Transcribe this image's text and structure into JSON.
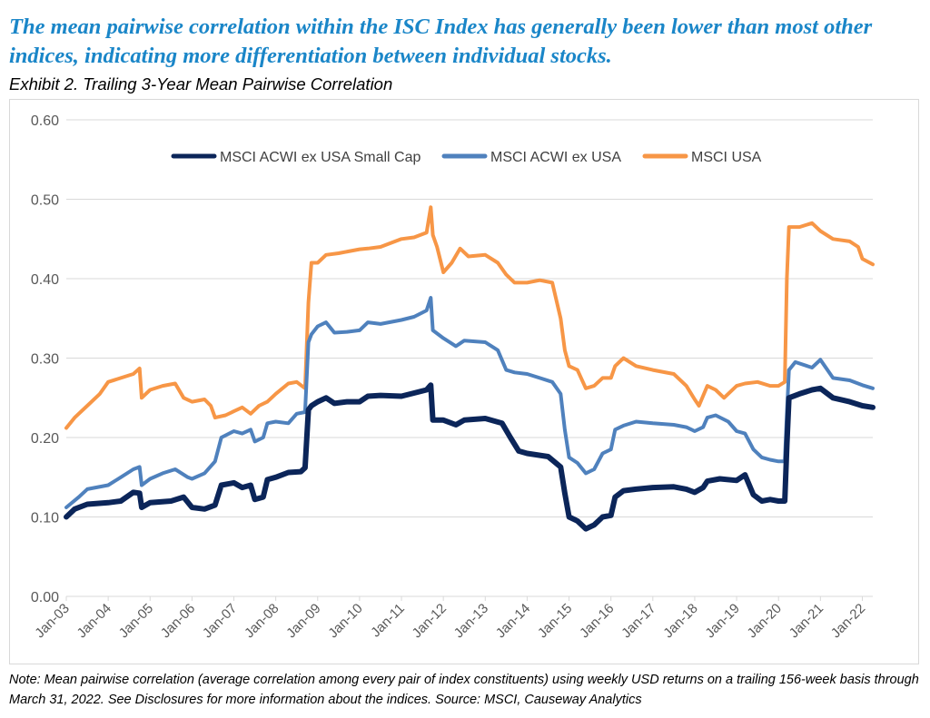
{
  "headline": "The mean pairwise correlation within the ISC Index has generally been lower than most other indices, indicating more differentiation between individual stocks.",
  "exhibit_title": "Exhibit 2. Trailing 3-Year Mean Pairwise Correlation",
  "note": "Note: Mean pairwise correlation (average correlation among every pair of index constituents) using weekly USD returns on a trailing 156-week basis through March 31, 2022.   See Disclosures for more information about the indices.   Source: MSCI, Causeway Analytics",
  "colors": {
    "small_cap": "#0b2559",
    "acwi_ex_usa": "#4f81bd",
    "usa": "#f79646",
    "grid": "#d9d9d9",
    "axis_text": "#595959"
  },
  "chart_data": {
    "type": "line",
    "title": "Exhibit 2. Trailing 3-Year Mean Pairwise Correlation",
    "xlabel": "",
    "ylabel": "",
    "ylim": [
      0,
      0.6
    ],
    "xlim": [
      2003.0,
      2022.25
    ],
    "grid": true,
    "legend_position": "top-center",
    "y_ticks": [
      "0.00",
      "0.10",
      "0.20",
      "0.30",
      "0.40",
      "0.50",
      "0.60"
    ],
    "x_ticks": [
      "Jan-03",
      "Jan-04",
      "Jan-05",
      "Jan-06",
      "Jan-07",
      "Jan-08",
      "Jan-09",
      "Jan-10",
      "Jan-11",
      "Jan-12",
      "Jan-13",
      "Jan-14",
      "Jan-15",
      "Jan-16",
      "Jan-17",
      "Jan-18",
      "Jan-19",
      "Jan-20",
      "Jan-21",
      "Jan-22"
    ],
    "series": [
      {
        "name": "MSCI ACWI ex USA Small Cap",
        "color": "#0b2559",
        "points": [
          [
            2003.0,
            0.1
          ],
          [
            2003.2,
            0.11
          ],
          [
            2003.5,
            0.116
          ],
          [
            2004.0,
            0.118
          ],
          [
            2004.3,
            0.12
          ],
          [
            2004.6,
            0.131
          ],
          [
            2004.75,
            0.13
          ],
          [
            2004.8,
            0.112
          ],
          [
            2005.0,
            0.118
          ],
          [
            2005.5,
            0.12
          ],
          [
            2005.8,
            0.125
          ],
          [
            2006.0,
            0.112
          ],
          [
            2006.3,
            0.11
          ],
          [
            2006.55,
            0.115
          ],
          [
            2006.7,
            0.14
          ],
          [
            2007.0,
            0.143
          ],
          [
            2007.2,
            0.137
          ],
          [
            2007.4,
            0.14
          ],
          [
            2007.5,
            0.122
          ],
          [
            2007.7,
            0.125
          ],
          [
            2007.8,
            0.147
          ],
          [
            2008.0,
            0.15
          ],
          [
            2008.3,
            0.156
          ],
          [
            2008.6,
            0.157
          ],
          [
            2008.7,
            0.162
          ],
          [
            2008.78,
            0.235
          ],
          [
            2008.85,
            0.24
          ],
          [
            2009.0,
            0.245
          ],
          [
            2009.2,
            0.25
          ],
          [
            2009.4,
            0.243
          ],
          [
            2009.7,
            0.245
          ],
          [
            2010.0,
            0.245
          ],
          [
            2010.2,
            0.252
          ],
          [
            2010.5,
            0.253
          ],
          [
            2011.0,
            0.252
          ],
          [
            2011.3,
            0.256
          ],
          [
            2011.6,
            0.26
          ],
          [
            2011.7,
            0.266
          ],
          [
            2011.75,
            0.222
          ],
          [
            2012.0,
            0.222
          ],
          [
            2012.3,
            0.216
          ],
          [
            2012.5,
            0.222
          ],
          [
            2013.0,
            0.224
          ],
          [
            2013.4,
            0.218
          ],
          [
            2013.6,
            0.2
          ],
          [
            2013.8,
            0.183
          ],
          [
            2014.0,
            0.18
          ],
          [
            2014.5,
            0.176
          ],
          [
            2014.8,
            0.163
          ],
          [
            2014.9,
            0.13
          ],
          [
            2015.0,
            0.1
          ],
          [
            2015.2,
            0.095
          ],
          [
            2015.4,
            0.085
          ],
          [
            2015.6,
            0.09
          ],
          [
            2015.8,
            0.1
          ],
          [
            2016.0,
            0.102
          ],
          [
            2016.1,
            0.125
          ],
          [
            2016.3,
            0.133
          ],
          [
            2016.6,
            0.135
          ],
          [
            2017.0,
            0.137
          ],
          [
            2017.5,
            0.138
          ],
          [
            2017.8,
            0.135
          ],
          [
            2018.0,
            0.131
          ],
          [
            2018.2,
            0.137
          ],
          [
            2018.3,
            0.145
          ],
          [
            2018.6,
            0.148
          ],
          [
            2019.0,
            0.146
          ],
          [
            2019.2,
            0.153
          ],
          [
            2019.4,
            0.128
          ],
          [
            2019.6,
            0.12
          ],
          [
            2019.8,
            0.122
          ],
          [
            2020.0,
            0.12
          ],
          [
            2020.15,
            0.12
          ],
          [
            2020.2,
            0.19
          ],
          [
            2020.25,
            0.25
          ],
          [
            2020.5,
            0.255
          ],
          [
            2020.8,
            0.26
          ],
          [
            2021.0,
            0.262
          ],
          [
            2021.3,
            0.25
          ],
          [
            2021.7,
            0.245
          ],
          [
            2022.0,
            0.24
          ],
          [
            2022.25,
            0.238
          ]
        ]
      },
      {
        "name": "MSCI ACWI ex USA",
        "color": "#4f81bd",
        "points": [
          [
            2003.0,
            0.112
          ],
          [
            2003.3,
            0.125
          ],
          [
            2003.5,
            0.135
          ],
          [
            2004.0,
            0.14
          ],
          [
            2004.3,
            0.15
          ],
          [
            2004.6,
            0.16
          ],
          [
            2004.75,
            0.163
          ],
          [
            2004.8,
            0.14
          ],
          [
            2005.0,
            0.148
          ],
          [
            2005.3,
            0.155
          ],
          [
            2005.6,
            0.16
          ],
          [
            2005.9,
            0.15
          ],
          [
            2006.0,
            0.148
          ],
          [
            2006.3,
            0.155
          ],
          [
            2006.55,
            0.17
          ],
          [
            2006.7,
            0.2
          ],
          [
            2007.0,
            0.208
          ],
          [
            2007.2,
            0.205
          ],
          [
            2007.4,
            0.21
          ],
          [
            2007.5,
            0.195
          ],
          [
            2007.7,
            0.2
          ],
          [
            2007.8,
            0.218
          ],
          [
            2008.0,
            0.22
          ],
          [
            2008.3,
            0.218
          ],
          [
            2008.5,
            0.23
          ],
          [
            2008.7,
            0.232
          ],
          [
            2008.78,
            0.32
          ],
          [
            2008.85,
            0.33
          ],
          [
            2009.0,
            0.34
          ],
          [
            2009.2,
            0.345
          ],
          [
            2009.4,
            0.332
          ],
          [
            2009.7,
            0.333
          ],
          [
            2010.0,
            0.335
          ],
          [
            2010.2,
            0.345
          ],
          [
            2010.5,
            0.343
          ],
          [
            2011.0,
            0.348
          ],
          [
            2011.3,
            0.352
          ],
          [
            2011.6,
            0.36
          ],
          [
            2011.7,
            0.376
          ],
          [
            2011.75,
            0.335
          ],
          [
            2012.0,
            0.325
          ],
          [
            2012.3,
            0.315
          ],
          [
            2012.5,
            0.322
          ],
          [
            2013.0,
            0.32
          ],
          [
            2013.3,
            0.31
          ],
          [
            2013.5,
            0.285
          ],
          [
            2013.7,
            0.282
          ],
          [
            2014.0,
            0.28
          ],
          [
            2014.3,
            0.275
          ],
          [
            2014.6,
            0.27
          ],
          [
            2014.8,
            0.255
          ],
          [
            2014.9,
            0.21
          ],
          [
            2015.0,
            0.175
          ],
          [
            2015.2,
            0.168
          ],
          [
            2015.4,
            0.155
          ],
          [
            2015.6,
            0.16
          ],
          [
            2015.8,
            0.18
          ],
          [
            2016.0,
            0.185
          ],
          [
            2016.1,
            0.21
          ],
          [
            2016.3,
            0.215
          ],
          [
            2016.6,
            0.22
          ],
          [
            2017.0,
            0.218
          ],
          [
            2017.5,
            0.216
          ],
          [
            2017.8,
            0.213
          ],
          [
            2018.0,
            0.208
          ],
          [
            2018.2,
            0.213
          ],
          [
            2018.3,
            0.225
          ],
          [
            2018.5,
            0.228
          ],
          [
            2018.8,
            0.22
          ],
          [
            2019.0,
            0.208
          ],
          [
            2019.2,
            0.205
          ],
          [
            2019.4,
            0.185
          ],
          [
            2019.6,
            0.175
          ],
          [
            2019.8,
            0.172
          ],
          [
            2020.0,
            0.17
          ],
          [
            2020.15,
            0.17
          ],
          [
            2020.2,
            0.23
          ],
          [
            2020.25,
            0.285
          ],
          [
            2020.4,
            0.295
          ],
          [
            2020.8,
            0.288
          ],
          [
            2021.0,
            0.298
          ],
          [
            2021.3,
            0.275
          ],
          [
            2021.7,
            0.272
          ],
          [
            2022.0,
            0.266
          ],
          [
            2022.25,
            0.262
          ]
        ]
      },
      {
        "name": "MSCI USA",
        "color": "#f79646",
        "points": [
          [
            2003.0,
            0.212
          ],
          [
            2003.2,
            0.225
          ],
          [
            2003.5,
            0.24
          ],
          [
            2003.8,
            0.255
          ],
          [
            2004.0,
            0.27
          ],
          [
            2004.3,
            0.275
          ],
          [
            2004.6,
            0.28
          ],
          [
            2004.75,
            0.287
          ],
          [
            2004.8,
            0.25
          ],
          [
            2005.0,
            0.26
          ],
          [
            2005.3,
            0.265
          ],
          [
            2005.6,
            0.268
          ],
          [
            2005.8,
            0.25
          ],
          [
            2006.0,
            0.245
          ],
          [
            2006.3,
            0.248
          ],
          [
            2006.45,
            0.24
          ],
          [
            2006.55,
            0.225
          ],
          [
            2006.8,
            0.228
          ],
          [
            2007.0,
            0.233
          ],
          [
            2007.2,
            0.238
          ],
          [
            2007.4,
            0.23
          ],
          [
            2007.6,
            0.24
          ],
          [
            2007.8,
            0.245
          ],
          [
            2008.0,
            0.255
          ],
          [
            2008.3,
            0.268
          ],
          [
            2008.5,
            0.27
          ],
          [
            2008.7,
            0.262
          ],
          [
            2008.78,
            0.37
          ],
          [
            2008.85,
            0.42
          ],
          [
            2009.0,
            0.42
          ],
          [
            2009.2,
            0.43
          ],
          [
            2009.5,
            0.432
          ],
          [
            2010.0,
            0.437
          ],
          [
            2010.2,
            0.438
          ],
          [
            2010.5,
            0.44
          ],
          [
            2011.0,
            0.45
          ],
          [
            2011.3,
            0.452
          ],
          [
            2011.6,
            0.458
          ],
          [
            2011.7,
            0.49
          ],
          [
            2011.75,
            0.455
          ],
          [
            2011.85,
            0.44
          ],
          [
            2012.0,
            0.408
          ],
          [
            2012.2,
            0.42
          ],
          [
            2012.4,
            0.438
          ],
          [
            2012.6,
            0.428
          ],
          [
            2013.0,
            0.43
          ],
          [
            2013.3,
            0.42
          ],
          [
            2013.5,
            0.405
          ],
          [
            2013.7,
            0.395
          ],
          [
            2014.0,
            0.395
          ],
          [
            2014.3,
            0.398
          ],
          [
            2014.6,
            0.395
          ],
          [
            2014.8,
            0.35
          ],
          [
            2014.9,
            0.31
          ],
          [
            2015.0,
            0.29
          ],
          [
            2015.2,
            0.285
          ],
          [
            2015.4,
            0.262
          ],
          [
            2015.6,
            0.265
          ],
          [
            2015.8,
            0.275
          ],
          [
            2016.0,
            0.275
          ],
          [
            2016.1,
            0.29
          ],
          [
            2016.3,
            0.3
          ],
          [
            2016.6,
            0.29
          ],
          [
            2017.0,
            0.285
          ],
          [
            2017.5,
            0.28
          ],
          [
            2017.8,
            0.265
          ],
          [
            2018.0,
            0.248
          ],
          [
            2018.1,
            0.24
          ],
          [
            2018.3,
            0.265
          ],
          [
            2018.5,
            0.26
          ],
          [
            2018.7,
            0.25
          ],
          [
            2019.0,
            0.265
          ],
          [
            2019.2,
            0.268
          ],
          [
            2019.5,
            0.27
          ],
          [
            2019.8,
            0.265
          ],
          [
            2020.0,
            0.265
          ],
          [
            2020.15,
            0.27
          ],
          [
            2020.2,
            0.4
          ],
          [
            2020.25,
            0.465
          ],
          [
            2020.5,
            0.465
          ],
          [
            2020.8,
            0.47
          ],
          [
            2021.0,
            0.46
          ],
          [
            2021.3,
            0.45
          ],
          [
            2021.7,
            0.447
          ],
          [
            2021.9,
            0.44
          ],
          [
            2022.0,
            0.425
          ],
          [
            2022.25,
            0.418
          ]
        ]
      }
    ]
  }
}
